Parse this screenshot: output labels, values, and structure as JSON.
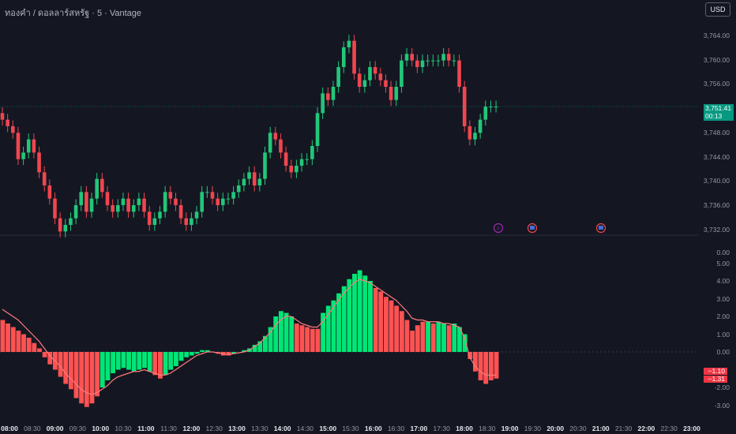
{
  "header": {
    "title": "ทองคำ / ดอลลาร์สหรัฐ · 5 · Vantage",
    "currency": "USD"
  },
  "price_axis": [
    "3,764.00",
    "3,760.00",
    "3,756.00",
    "3,752.00",
    "3,748.00",
    "3,744.00",
    "3,740.00",
    "3,736.00",
    "3,732.00"
  ],
  "current_price": {
    "value": "3,751.41",
    "countdown": "00:13"
  },
  "indicator_axis": [
    "0.00",
    "5.00",
    "4.00",
    "3.00",
    "2.00",
    "1.00",
    "0.00",
    "-2.00",
    "-3.00"
  ],
  "indicator_tags": [
    "−1.10",
    "−1.31"
  ],
  "time_axis": [
    {
      "label": "08:00",
      "bold": true
    },
    {
      "label": "08:30",
      "bold": false
    },
    {
      "label": "09:00",
      "bold": true
    },
    {
      "label": "09:30",
      "bold": false
    },
    {
      "label": "10:00",
      "bold": true
    },
    {
      "label": "10:30",
      "bold": false
    },
    {
      "label": "11:00",
      "bold": true
    },
    {
      "label": "11:30",
      "bold": false
    },
    {
      "label": "12:00",
      "bold": true
    },
    {
      "label": "12:30",
      "bold": false
    },
    {
      "label": "13:00",
      "bold": true
    },
    {
      "label": "13:30",
      "bold": false
    },
    {
      "label": "14:00",
      "bold": true
    },
    {
      "label": "14:30",
      "bold": false
    },
    {
      "label": "15:00",
      "bold": true
    },
    {
      "label": "15:30",
      "bold": false
    },
    {
      "label": "16:00",
      "bold": true
    },
    {
      "label": "16:30",
      "bold": false
    },
    {
      "label": "17:00",
      "bold": true
    },
    {
      "label": "17:30",
      "bold": false
    },
    {
      "label": "18:00",
      "bold": true
    },
    {
      "label": "18:30",
      "bold": false
    },
    {
      "label": "19:00",
      "bold": true
    },
    {
      "label": "19:30",
      "bold": false
    },
    {
      "label": "20:00",
      "bold": true
    },
    {
      "label": "20:30",
      "bold": false
    },
    {
      "label": "21:00",
      "bold": true
    },
    {
      "label": "21:30",
      "bold": false
    },
    {
      "label": "22:00",
      "bold": true
    },
    {
      "label": "22:30",
      "bold": false
    },
    {
      "label": "23:00",
      "bold": true
    }
  ],
  "colors": {
    "up": "#22c77a",
    "down": "#f0464f",
    "hist_up": "#00e676",
    "hist_down": "#ff5252",
    "signal": "#ff7b7b"
  },
  "event_icons": [
    "flash-icon",
    "us-flag-icon",
    "us-flag-icon"
  ],
  "chart_data": {
    "type": "candlestick+histogram",
    "price_range": [
      3730,
      3766
    ],
    "closes": [
      3749,
      3748,
      3747,
      3743,
      3744,
      3746,
      3744,
      3741,
      3739,
      3737,
      3734,
      3732,
      3733,
      3734,
      3736,
      3738,
      3735,
      3737,
      3740,
      3738,
      3736,
      3735,
      3736,
      3737,
      3735,
      3736,
      3737,
      3735,
      3733,
      3734,
      3735,
      3738,
      3737,
      3736,
      3734,
      3733,
      3734,
      3735,
      3738,
      3738,
      3737,
      3736,
      3737,
      3737,
      3738,
      3739,
      3740,
      3741,
      3739,
      3740,
      3744,
      3747,
      3746,
      3744,
      3742,
      3741,
      3742,
      3743,
      3743,
      3745,
      3750,
      3753,
      3752,
      3754,
      3757,
      3760,
      3761,
      3756,
      3754,
      3755,
      3757,
      3756,
      3755,
      3754,
      3752,
      3754,
      3758,
      3759,
      3758,
      3757,
      3758,
      3758,
      3758,
      3758,
      3759,
      3758,
      3758,
      3754,
      3748,
      3746,
      3747,
      3749,
      3751,
      3751,
      3751
    ],
    "histogram": [
      1.8,
      1.6,
      1.4,
      1.2,
      1.0,
      0.8,
      0.5,
      0.2,
      -0.3,
      -0.7,
      -1.0,
      -1.4,
      -1.8,
      -2.1,
      -2.6,
      -2.9,
      -3.1,
      -2.9,
      -2.5,
      -2.0,
      -1.6,
      -1.2,
      -1.0,
      -0.9,
      -1.0,
      -1.1,
      -1.0,
      -0.9,
      -1.1,
      -1.3,
      -1.5,
      -1.3,
      -1.0,
      -0.8,
      -0.5,
      -0.3,
      -0.2,
      -0.1,
      0.1,
      0.1,
      0.0,
      -0.1,
      -0.2,
      -0.2,
      -0.1,
      0.0,
      0.1,
      0.2,
      0.4,
      0.6,
      0.9,
      1.4,
      2.0,
      2.3,
      2.2,
      2.0,
      1.6,
      1.5,
      1.4,
      1.3,
      1.3,
      2.2,
      2.6,
      2.9,
      3.3,
      3.7,
      4.1,
      4.4,
      4.6,
      4.3,
      4.0,
      3.6,
      3.4,
      3.1,
      2.9,
      2.6,
      2.3,
      1.8,
      1.2,
      1.5,
      1.7,
      1.7,
      1.6,
      1.7,
      1.6,
      1.5,
      1.6,
      1.4,
      1.0,
      -0.4,
      -1.1,
      -1.6,
      -1.8,
      -1.6,
      -1.5
    ],
    "signal": [
      2.4,
      2.2,
      2.0,
      1.8,
      1.5,
      1.2,
      0.9,
      0.6,
      0.2,
      -0.2,
      -0.5,
      -0.8,
      -1.2,
      -1.5,
      -1.8,
      -2.1,
      -2.3,
      -2.4,
      -2.3,
      -2.1,
      -1.9,
      -1.6,
      -1.4,
      -1.3,
      -1.2,
      -1.1,
      -1.1,
      -1.0,
      -1.1,
      -1.2,
      -1.3,
      -1.3,
      -1.2,
      -1.0,
      -0.8,
      -0.6,
      -0.4,
      -0.2,
      -0.1,
      0.0,
      0.0,
      -0.05,
      -0.1,
      -0.15,
      -0.1,
      -0.05,
      0.0,
      0.1,
      0.3,
      0.5,
      0.8,
      1.1,
      1.5,
      1.8,
      2.0,
      2.0,
      1.8,
      1.6,
      1.5,
      1.4,
      1.4,
      1.7,
      2.1,
      2.5,
      2.9,
      3.3,
      3.6,
      3.9,
      4.1,
      4.0,
      3.9,
      3.7,
      3.5,
      3.3,
      3.1,
      2.9,
      2.6,
      2.3,
      1.9,
      1.8,
      1.8,
      1.7,
      1.7,
      1.7,
      1.6,
      1.6,
      1.5,
      1.4,
      0.8,
      -0.3,
      -0.8,
      -1.1,
      -1.3,
      -1.3,
      -1.31
    ]
  }
}
